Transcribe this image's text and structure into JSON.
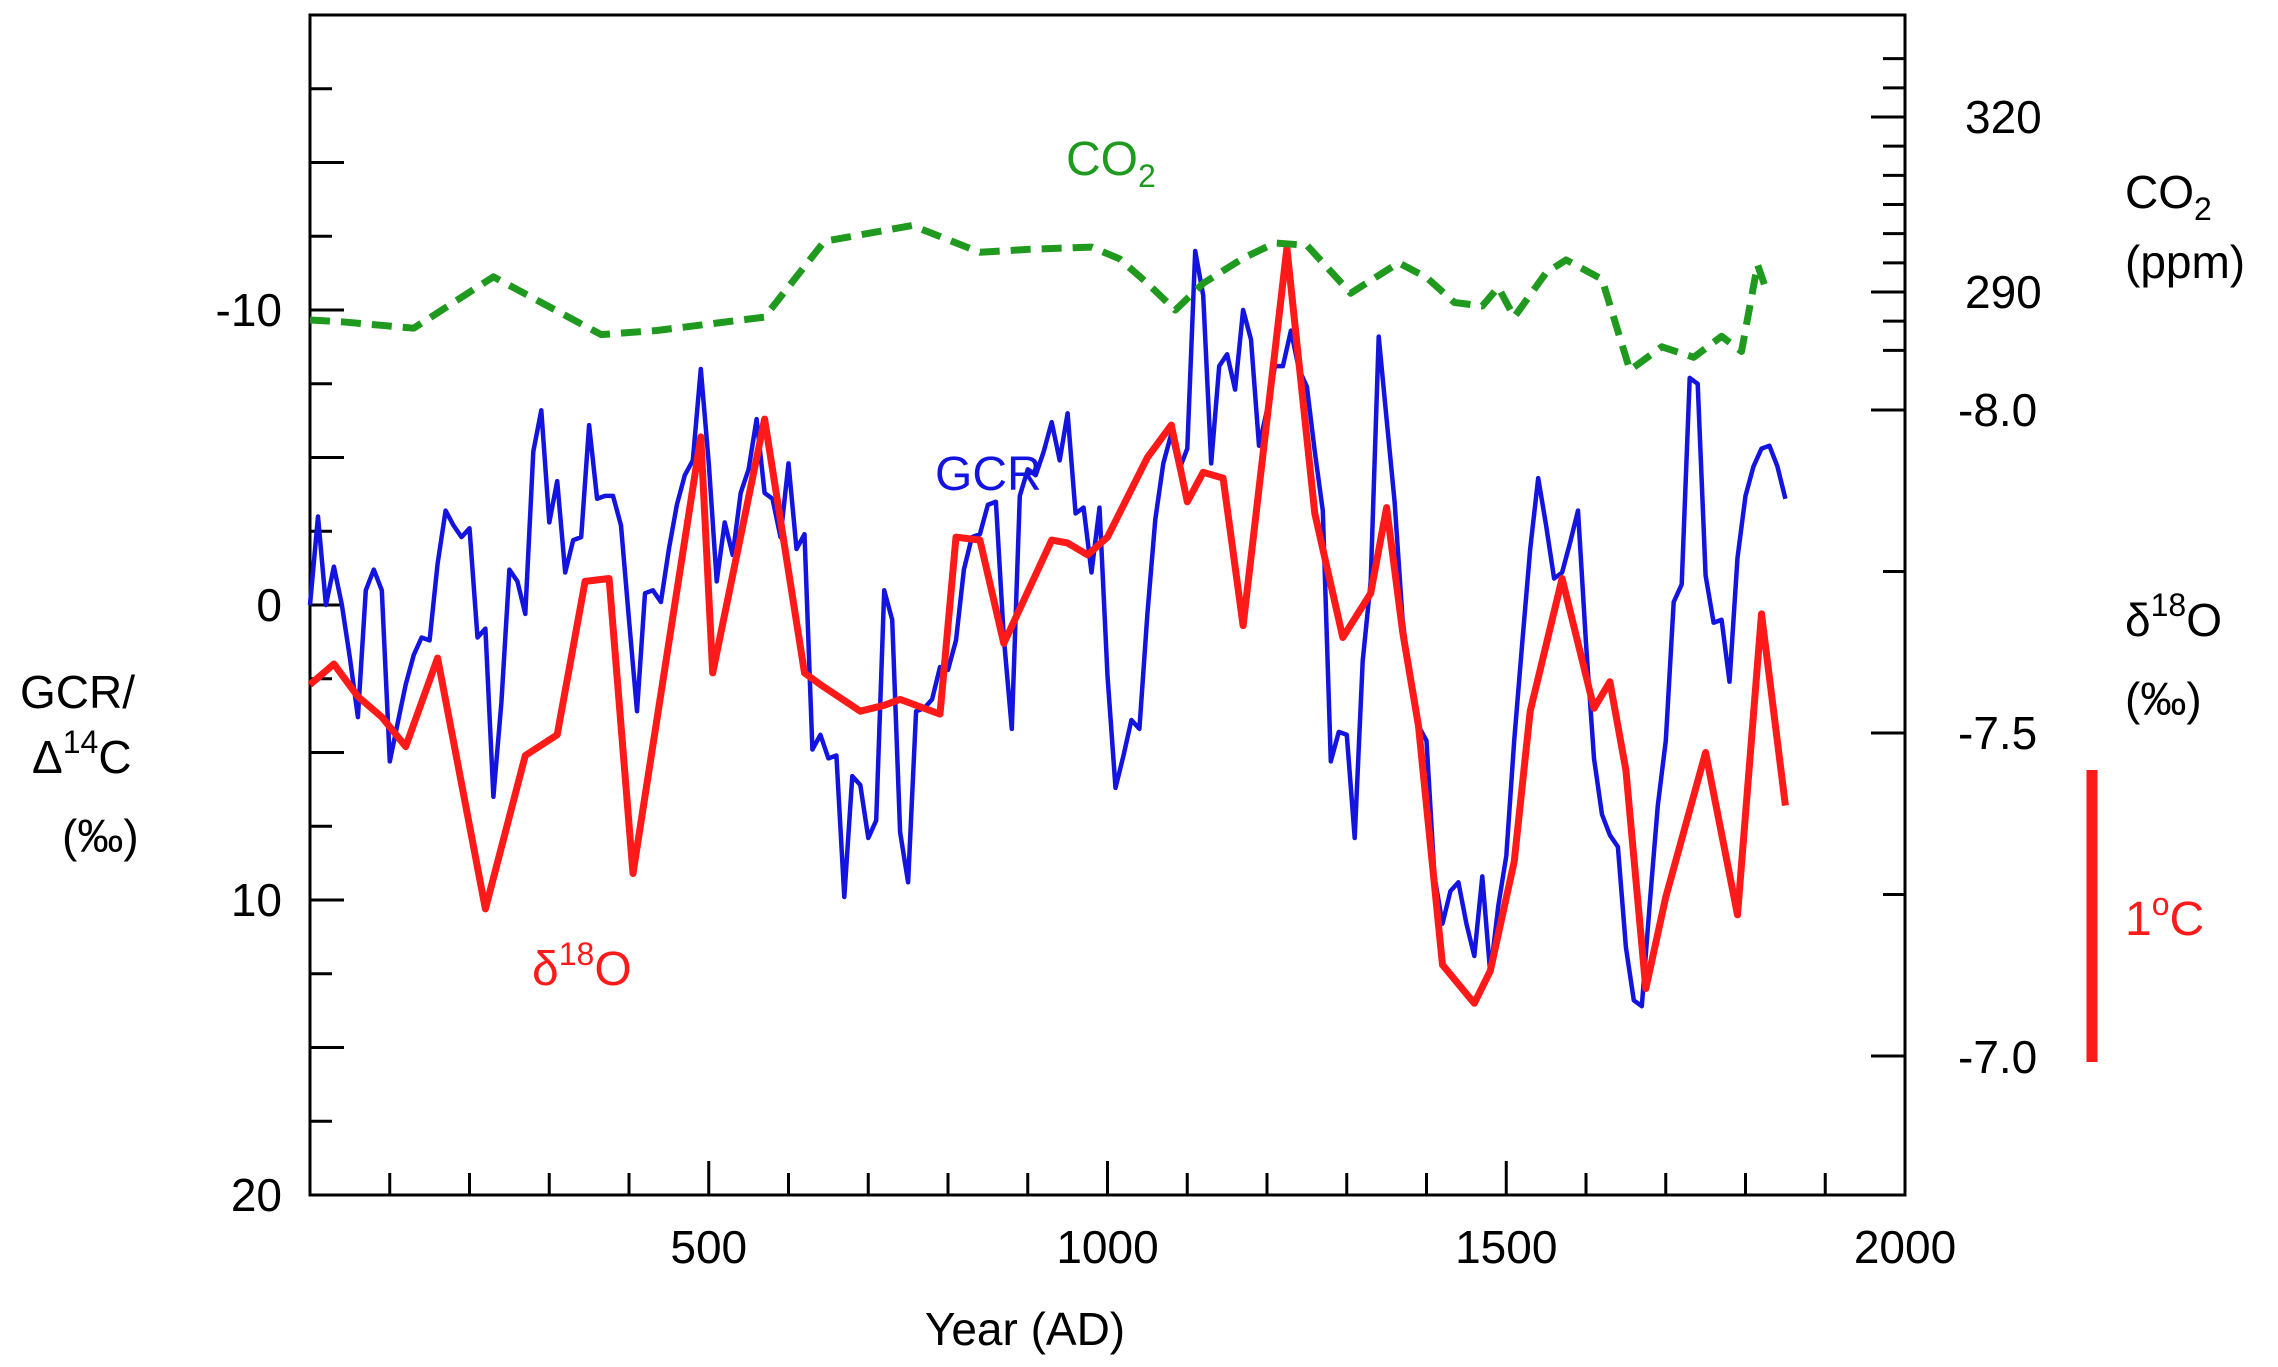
{
  "chart_data": {
    "type": "line",
    "xlabel": "Year (AD)",
    "xlim": [
      0,
      2000
    ],
    "x_ticks": [
      500,
      1000,
      1500,
      2000
    ],
    "left_axis": {
      "label_lines": [
        "GCR/",
        "Δ14C",
        "(‰)"
      ],
      "ylim": [
        20,
        -20
      ],
      "ticks": [
        -10,
        0,
        10,
        20
      ]
    },
    "right_axis_co2": {
      "label_lines": [
        "CO2",
        "(ppm)"
      ],
      "ticks": [
        320,
        290
      ],
      "scale": "ppm"
    },
    "right_axis_d18o": {
      "label_lines": [
        "δ18O",
        "(‰)"
      ],
      "ticks": [
        "-8.0",
        "-7.5",
        "-7.0"
      ]
    },
    "scale_bar_label": "1oC",
    "colors": {
      "gcr": "#1414e0",
      "d18o": "#ff1a1a",
      "co2": "#1f9a1f",
      "axis": "#000000"
    },
    "series": [
      {
        "name": "GCR",
        "label": "GCR",
        "style": "solid",
        "values_in": "left_axis_permil",
        "points": [
          [
            0,
            0
          ],
          [
            10,
            -3
          ],
          [
            20,
            0
          ],
          [
            30,
            -1.3
          ],
          [
            40,
            0
          ],
          [
            50,
            1.8
          ],
          [
            60,
            3.8
          ],
          [
            70,
            -0.5
          ],
          [
            80,
            -1.2
          ],
          [
            90,
            -0.5
          ],
          [
            100,
            5.3
          ],
          [
            110,
            4
          ],
          [
            120,
            2.7
          ],
          [
            130,
            1.7
          ],
          [
            140,
            1.1
          ],
          [
            150,
            1.2
          ],
          [
            160,
            -1.4
          ],
          [
            170,
            -3.2
          ],
          [
            180,
            -2.7
          ],
          [
            190,
            -2.3
          ],
          [
            200,
            -2.6
          ],
          [
            210,
            1.1
          ],
          [
            220,
            0.8
          ],
          [
            230,
            6.5
          ],
          [
            240,
            3.3
          ],
          [
            250,
            -1.2
          ],
          [
            260,
            -0.8
          ],
          [
            270,
            0.3
          ],
          [
            280,
            -5.2
          ],
          [
            290,
            -6.6
          ],
          [
            300,
            -2.8
          ],
          [
            310,
            -4.2
          ],
          [
            320,
            -1.1
          ],
          [
            330,
            -2.2
          ],
          [
            340,
            -2.3
          ],
          [
            350,
            -6.1
          ],
          [
            360,
            -3.6
          ],
          [
            370,
            -3.7
          ],
          [
            380,
            -3.7
          ],
          [
            390,
            -2.7
          ],
          [
            400,
            0.5
          ],
          [
            410,
            3.6
          ],
          [
            420,
            -0.4
          ],
          [
            430,
            -0.5
          ],
          [
            440,
            -0.1
          ],
          [
            450,
            -1.9
          ],
          [
            460,
            -3.4
          ],
          [
            470,
            -4.4
          ],
          [
            480,
            -4.9
          ],
          [
            490,
            -8
          ],
          [
            500,
            -4.8
          ],
          [
            510,
            -0.8
          ],
          [
            520,
            -2.8
          ],
          [
            530,
            -1.7
          ],
          [
            540,
            -3.8
          ],
          [
            550,
            -4.6
          ],
          [
            560,
            -6.3
          ],
          [
            570,
            -3.8
          ],
          [
            580,
            -3.6
          ],
          [
            590,
            -2.3
          ],
          [
            600,
            -4.8
          ],
          [
            610,
            -1.9
          ],
          [
            620,
            -2.4
          ],
          [
            630,
            4.9
          ],
          [
            640,
            4.4
          ],
          [
            650,
            5.2
          ],
          [
            660,
            5.1
          ],
          [
            670,
            9.9
          ],
          [
            680,
            5.8
          ],
          [
            690,
            6.1
          ],
          [
            700,
            7.9
          ],
          [
            710,
            7.3
          ],
          [
            720,
            -0.5
          ],
          [
            730,
            0.5
          ],
          [
            740,
            7.7
          ],
          [
            750,
            9.4
          ],
          [
            760,
            3.6
          ],
          [
            770,
            3.5
          ],
          [
            780,
            3.2
          ],
          [
            790,
            2.1
          ],
          [
            800,
            2.2
          ],
          [
            810,
            1.2
          ],
          [
            820,
            -1.2
          ],
          [
            830,
            -2.3
          ],
          [
            840,
            -2.4
          ],
          [
            850,
            -3.4
          ],
          [
            860,
            -3.5
          ],
          [
            870,
            1.1
          ],
          [
            880,
            4.2
          ],
          [
            890,
            -3.7
          ],
          [
            900,
            -4.6
          ],
          [
            910,
            -4.4
          ],
          [
            920,
            -5.2
          ],
          [
            930,
            -6.2
          ],
          [
            940,
            -4.9
          ],
          [
            950,
            -6.5
          ],
          [
            960,
            -3.1
          ],
          [
            970,
            -3.3
          ],
          [
            980,
            -1.1
          ],
          [
            990,
            -3.3
          ],
          [
            1000,
            2.4
          ],
          [
            1010,
            6.2
          ],
          [
            1020,
            5.1
          ],
          [
            1030,
            3.9
          ],
          [
            1040,
            4.2
          ],
          [
            1050,
            0.3
          ],
          [
            1060,
            -2.9
          ],
          [
            1070,
            -4.8
          ],
          [
            1080,
            -5.8
          ],
          [
            1090,
            -4.6
          ],
          [
            1100,
            -5.3
          ],
          [
            1110,
            -12
          ],
          [
            1120,
            -10.5
          ],
          [
            1130,
            -4.8
          ],
          [
            1140,
            -8.1
          ],
          [
            1150,
            -8.5
          ],
          [
            1160,
            -7.3
          ],
          [
            1170,
            -10
          ],
          [
            1180,
            -9
          ],
          [
            1190,
            -5.4
          ],
          [
            1200,
            -6.6
          ],
          [
            1210,
            -8.1
          ],
          [
            1220,
            -8.1
          ],
          [
            1230,
            -9.3
          ],
          [
            1240,
            -8
          ],
          [
            1250,
            -7.4
          ],
          [
            1260,
            -5.2
          ],
          [
            1270,
            -3.2
          ],
          [
            1280,
            5.3
          ],
          [
            1290,
            4.3
          ],
          [
            1300,
            4.4
          ],
          [
            1310,
            7.9
          ],
          [
            1320,
            1.9
          ],
          [
            1330,
            -0.8
          ],
          [
            1340,
            -9.1
          ],
          [
            1350,
            -6.3
          ],
          [
            1360,
            -3.5
          ],
          [
            1370,
            0.5
          ],
          [
            1380,
            2.6
          ],
          [
            1390,
            4.1
          ],
          [
            1400,
            4.6
          ],
          [
            1410,
            9.2
          ],
          [
            1420,
            10.8
          ],
          [
            1430,
            9.7
          ],
          [
            1440,
            9.4
          ],
          [
            1450,
            10.8
          ],
          [
            1460,
            11.9
          ],
          [
            1470,
            9.2
          ],
          [
            1480,
            12.5
          ],
          [
            1490,
            10.2
          ],
          [
            1500,
            8.5
          ],
          [
            1510,
            4.6
          ],
          [
            1520,
            1.3
          ],
          [
            1530,
            -1.9
          ],
          [
            1540,
            -4.3
          ],
          [
            1550,
            -2.7
          ],
          [
            1560,
            -0.9
          ],
          [
            1570,
            -1.1
          ],
          [
            1580,
            -2.1
          ],
          [
            1590,
            -3.2
          ],
          [
            1600,
            1.3
          ],
          [
            1610,
            5.2
          ],
          [
            1620,
            7.1
          ],
          [
            1630,
            7.8
          ],
          [
            1640,
            8.2
          ],
          [
            1650,
            11.6
          ],
          [
            1660,
            13.4
          ],
          [
            1670,
            13.6
          ],
          [
            1680,
            10.1
          ],
          [
            1690,
            6.8
          ],
          [
            1700,
            4.6
          ],
          [
            1710,
            -0.1
          ],
          [
            1720,
            -0.7
          ],
          [
            1730,
            -7.7
          ],
          [
            1740,
            -7.5
          ],
          [
            1750,
            -1
          ],
          [
            1760,
            0.6
          ],
          [
            1770,
            0.5
          ],
          [
            1780,
            2.6
          ],
          [
            1790,
            -1.6
          ],
          [
            1800,
            -3.7
          ],
          [
            1810,
            -4.7
          ],
          [
            1820,
            -5.3
          ],
          [
            1830,
            -5.4
          ],
          [
            1840,
            -4.7
          ],
          [
            1850,
            -3.6
          ]
        ]
      },
      {
        "name": "δ18O",
        "label_base": "δ",
        "label_sup": "18",
        "label_tail": "O",
        "style": "solid-thick",
        "values_in": "left_axis_permil",
        "points": [
          [
            0,
            2.7
          ],
          [
            30,
            2
          ],
          [
            60,
            3.1
          ],
          [
            90,
            3.8
          ],
          [
            120,
            4.8
          ],
          [
            160,
            1.8
          ],
          [
            220,
            10.3
          ],
          [
            270,
            5.1
          ],
          [
            310,
            4.4
          ],
          [
            345,
            -0.8
          ],
          [
            375,
            -0.9
          ],
          [
            405,
            9.1
          ],
          [
            490,
            -5.7
          ],
          [
            505,
            2.3
          ],
          [
            570,
            -6.3
          ],
          [
            620,
            2.3
          ],
          [
            640,
            2.7
          ],
          [
            690,
            3.6
          ],
          [
            720,
            3.4
          ],
          [
            740,
            3.2
          ],
          [
            790,
            3.7
          ],
          [
            810,
            -2.3
          ],
          [
            840,
            -2.2
          ],
          [
            870,
            1.3
          ],
          [
            930,
            -2.2
          ],
          [
            950,
            -2.1
          ],
          [
            975,
            -1.7
          ],
          [
            1000,
            -2.3
          ],
          [
            1050,
            -5
          ],
          [
            1080,
            -6.1
          ],
          [
            1100,
            -3.5
          ],
          [
            1120,
            -4.5
          ],
          [
            1145,
            -4.3
          ],
          [
            1170,
            0.7
          ],
          [
            1225,
            -12.1
          ],
          [
            1260,
            -3.1
          ],
          [
            1295,
            1.1
          ],
          [
            1330,
            -0.4
          ],
          [
            1350,
            -3.3
          ],
          [
            1370,
            0.9
          ],
          [
            1390,
            4.1
          ],
          [
            1420,
            12.2
          ],
          [
            1460,
            13.5
          ],
          [
            1480,
            12.4
          ],
          [
            1510,
            8.7
          ],
          [
            1530,
            3.6
          ],
          [
            1570,
            -0.9
          ],
          [
            1610,
            3.5
          ],
          [
            1630,
            2.6
          ],
          [
            1650,
            5.6
          ],
          [
            1675,
            13
          ],
          [
            1700,
            9.9
          ],
          [
            1750,
            5
          ],
          [
            1790,
            10.5
          ],
          [
            1820,
            0.3
          ],
          [
            1850,
            6.8
          ]
        ]
      },
      {
        "name": "CO2",
        "label_base": "CO",
        "label_sub": "2",
        "style": "dashed",
        "values_in": "ppm",
        "points": [
          [
            0,
            285.2
          ],
          [
            40,
            284.9
          ],
          [
            130,
            283.8
          ],
          [
            230,
            292.6
          ],
          [
            365,
            282.7
          ],
          [
            435,
            283.4
          ],
          [
            570,
            285.7
          ],
          [
            645,
            298.7
          ],
          [
            755,
            301.4
          ],
          [
            840,
            296.8
          ],
          [
            900,
            297.3
          ],
          [
            980,
            297.7
          ],
          [
            1015,
            295.7
          ],
          [
            1050,
            291.5
          ],
          [
            1085,
            286.9
          ],
          [
            1120,
            291.5
          ],
          [
            1170,
            295.8
          ],
          [
            1210,
            298.4
          ],
          [
            1250,
            298
          ],
          [
            1305,
            289.8
          ],
          [
            1365,
            295
          ],
          [
            1400,
            292.5
          ],
          [
            1435,
            288.2
          ],
          [
            1470,
            287.6
          ],
          [
            1490,
            290.8
          ],
          [
            1510,
            285.7
          ],
          [
            1550,
            293.3
          ],
          [
            1575,
            295.5
          ],
          [
            1620,
            292.2
          ],
          [
            1655,
            276.6
          ],
          [
            1695,
            280.6
          ],
          [
            1735,
            278.8
          ],
          [
            1770,
            282.4
          ],
          [
            1795,
            279.8
          ],
          [
            1815,
            294.7
          ],
          [
            1825,
            290.8
          ]
        ]
      }
    ]
  }
}
